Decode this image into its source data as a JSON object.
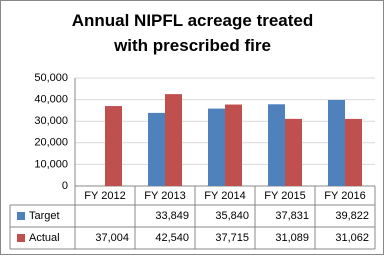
{
  "chart_data": {
    "type": "bar",
    "title": "Annual NIPFL acreage treated with prescribed fire",
    "categories": [
      "FY 2012",
      "FY 2013",
      "FY 2014",
      "FY 2015",
      "FY 2016"
    ],
    "series": [
      {
        "name": "Target",
        "color": "#4f81bd",
        "values": [
          null,
          33849,
          35840,
          37831,
          39822
        ],
        "value_labels": [
          null,
          "33,849",
          "35,840",
          "37,831",
          "39,822"
        ]
      },
      {
        "name": "Actual",
        "color": "#c0504d",
        "values": [
          37004,
          42540,
          37715,
          31089,
          31062
        ],
        "value_labels": [
          "37,004",
          "42,540",
          "37,715",
          "31,089",
          "31,062"
        ]
      }
    ],
    "ylim": [
      0,
      50000
    ],
    "yticks": [
      0,
      {
        "value": 10000,
        "label": "10,000"
      },
      {
        "value": 20000,
        "label": "20,000"
      },
      {
        "value": 30000,
        "label": "30,000"
      },
      {
        "value": 40000,
        "label": "40,000"
      },
      {
        "value": 50000,
        "label": "50,000"
      }
    ],
    "grid": true,
    "legend": "table"
  }
}
